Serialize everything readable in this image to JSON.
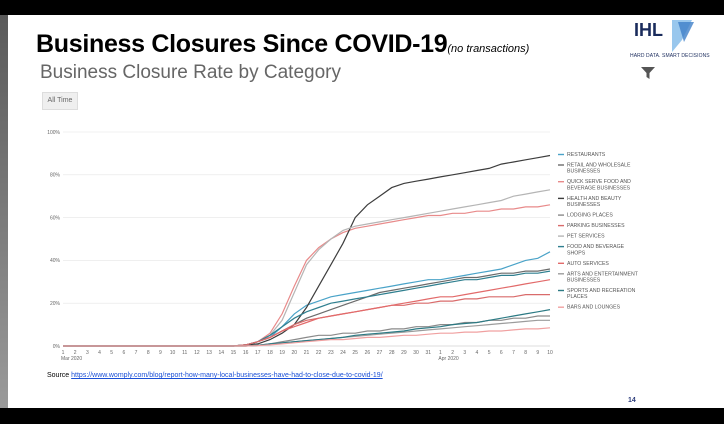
{
  "slide": {
    "title": "Business Closures Since COVID-19",
    "title_note": "(no transactions)",
    "chart_heading": "Business Closure Rate by Category",
    "filter_label": "All Time",
    "source_label": "Source",
    "source_url": "https://www.womply.com/blog/report-how-many-local-businesses-have-had-to-close-due-to-covid-19/",
    "page_number": "14",
    "logo_text": "IHL",
    "logo_tagline": "HARD DATA. SMART DECISIONS"
  },
  "chart_data": {
    "type": "line",
    "title": "Business Closure Rate by Category",
    "x": [
      "1",
      "2",
      "3",
      "4",
      "5",
      "6",
      "7",
      "8",
      "9",
      "10",
      "11",
      "12",
      "13",
      "14",
      "15",
      "16",
      "17",
      "18",
      "19",
      "20",
      "21",
      "22",
      "23",
      "24",
      "25",
      "26",
      "27",
      "28",
      "29",
      "30",
      "31",
      "1",
      "2",
      "3",
      "4",
      "5",
      "6",
      "7",
      "8",
      "9",
      "10"
    ],
    "x_month_labels": [
      "Mar 2020",
      "Apr 2020"
    ],
    "y_ticks": [
      "0%",
      "20%",
      "40%",
      "60%",
      "80%",
      "100%"
    ],
    "ylim": [
      0,
      100
    ],
    "legend_position": "right",
    "series": [
      {
        "name": "RESTAURANTS",
        "color": "#4aa3c8",
        "values": [
          0,
          0,
          0,
          0,
          0,
          0,
          0,
          0,
          0,
          0,
          0,
          0,
          0,
          0,
          0,
          0.5,
          2,
          4,
          9,
          15,
          19,
          21,
          23,
          24,
          25,
          26,
          27,
          28,
          29,
          30,
          31,
          31,
          32,
          33,
          34,
          35,
          36,
          38,
          40,
          41,
          44
        ]
      },
      {
        "name": "RETAIL AND WHOLESALE BUSINESSES",
        "color": "#6b6b6b",
        "values": [
          0,
          0,
          0,
          0,
          0,
          0,
          0,
          0,
          0,
          0,
          0,
          0,
          0,
          0,
          0,
          0.5,
          2,
          4,
          7,
          10,
          13,
          15,
          17,
          19,
          21,
          23,
          25,
          26,
          27,
          28,
          29,
          30,
          31,
          32,
          32,
          33,
          34,
          34,
          35,
          35,
          36
        ]
      },
      {
        "name": "QUICK SERVE FOOD AND BEVERAGE BUSINESSES",
        "color": "#e88a8a",
        "values": [
          0,
          0,
          0,
          0,
          0,
          0,
          0,
          0,
          0,
          0,
          0,
          0,
          0,
          0,
          0,
          0.5,
          2,
          6,
          15,
          28,
          40,
          46,
          50,
          53,
          55,
          56,
          57,
          58,
          59,
          60,
          61,
          61,
          62,
          62,
          63,
          63,
          64,
          64,
          65,
          65,
          66
        ]
      },
      {
        "name": "HEALTH AND BEAUTY BUSINESSES",
        "color": "#3d3d3d",
        "values": [
          0,
          0,
          0,
          0,
          0,
          0,
          0,
          0,
          0,
          0,
          0,
          0,
          0,
          0,
          0,
          0.5,
          1,
          3,
          6,
          10,
          18,
          28,
          38,
          48,
          60,
          66,
          70,
          74,
          76,
          77,
          78,
          79,
          80,
          81,
          82,
          83,
          85,
          86,
          87,
          88,
          89
        ]
      },
      {
        "name": "LODGING PLACES",
        "color": "#8a8a8a",
        "values": [
          0,
          0,
          0,
          0,
          0,
          0,
          0,
          0,
          0,
          0,
          0,
          0,
          0,
          0,
          0,
          0,
          0.3,
          1,
          2,
          3,
          4,
          5,
          5,
          6,
          6,
          7,
          7,
          8,
          8,
          9,
          9,
          10,
          10,
          11,
          11,
          12,
          12,
          13,
          13,
          14,
          14
        ]
      },
      {
        "name": "PARKING BUSINESSES",
        "color": "#d96b6b",
        "values": [
          0,
          0,
          0,
          0,
          0,
          0,
          0,
          0,
          0,
          0,
          0,
          0,
          0,
          0,
          0,
          0.5,
          2,
          4,
          7,
          10,
          12,
          13,
          14,
          15,
          16,
          17,
          18,
          19,
          19,
          20,
          20,
          21,
          21,
          22,
          22,
          23,
          23,
          23,
          24,
          24,
          24
        ]
      },
      {
        "name": "PET SERVICES",
        "color": "#b5b5b5",
        "values": [
          0,
          0,
          0,
          0,
          0,
          0,
          0,
          0,
          0,
          0,
          0,
          0,
          0,
          0,
          0,
          0.5,
          2,
          5,
          12,
          25,
          38,
          45,
          50,
          54,
          56,
          57,
          58,
          59,
          60,
          61,
          62,
          63,
          64,
          65,
          66,
          67,
          68,
          70,
          71,
          72,
          73
        ]
      },
      {
        "name": "FOOD AND BEVERAGE SHOPS",
        "color": "#2f7f8f",
        "values": [
          0,
          0,
          0,
          0,
          0,
          0,
          0,
          0,
          0,
          0,
          0,
          0,
          0,
          0,
          0,
          0.5,
          2,
          5,
          9,
          13,
          16,
          18,
          20,
          21,
          22,
          23,
          24,
          25,
          26,
          27,
          28,
          29,
          30,
          31,
          31,
          32,
          33,
          33,
          34,
          34,
          35
        ]
      },
      {
        "name": "AUTO SERVICES",
        "color": "#e26a6a",
        "values": [
          0,
          0,
          0,
          0,
          0,
          0,
          0,
          0,
          0,
          0,
          0,
          0,
          0,
          0,
          0,
          0.5,
          2,
          4,
          7,
          9,
          11,
          13,
          14,
          15,
          16,
          17,
          18,
          19,
          20,
          21,
          22,
          23,
          23,
          24,
          25,
          26,
          27,
          28,
          29,
          30,
          31
        ]
      },
      {
        "name": "ARTS AND ENTERTAINMENT BUSINESSES",
        "color": "#9c9c9c",
        "values": [
          0,
          0,
          0,
          0,
          0,
          0,
          0,
          0,
          0,
          0,
          0,
          0,
          0,
          0,
          0,
          0,
          0.3,
          1,
          1.5,
          2,
          2.5,
          3,
          3.5,
          4,
          4.5,
          5,
          5.5,
          6,
          6.5,
          7,
          7.5,
          8,
          8.5,
          9,
          9.5,
          10,
          10.5,
          11,
          11.5,
          12,
          12
        ]
      },
      {
        "name": "SPORTS AND RECREATION PLACES",
        "color": "#2c7a84",
        "values": [
          0,
          0,
          0,
          0,
          0,
          0,
          0,
          0,
          0,
          0,
          0,
          0,
          0,
          0,
          0,
          0,
          0.3,
          1,
          1.5,
          2,
          2.5,
          3,
          3.5,
          4,
          5,
          5.5,
          6,
          6.5,
          7,
          8,
          8.5,
          9,
          10,
          10.5,
          11,
          12,
          13,
          14,
          15,
          16,
          17
        ]
      },
      {
        "name": "BARS AND LOUNGES",
        "color": "#f0a0a0",
        "values": [
          0,
          0,
          0,
          0,
          0,
          0,
          0,
          0,
          0,
          0,
          0,
          0,
          0,
          0,
          0,
          0,
          0.2,
          0.5,
          1,
          1.5,
          2,
          2.5,
          3,
          3,
          3.5,
          4,
          4,
          4.5,
          5,
          5,
          5.5,
          6,
          6,
          6.5,
          6.5,
          7,
          7,
          7.5,
          8,
          8,
          8.5
        ]
      }
    ]
  },
  "colors": {
    "background": "#000000",
    "slide": "#ffffff",
    "title": "#000000",
    "gridline": "#e6e6e6",
    "link": "#1a4fd6",
    "logo": "#1a2b5c"
  }
}
